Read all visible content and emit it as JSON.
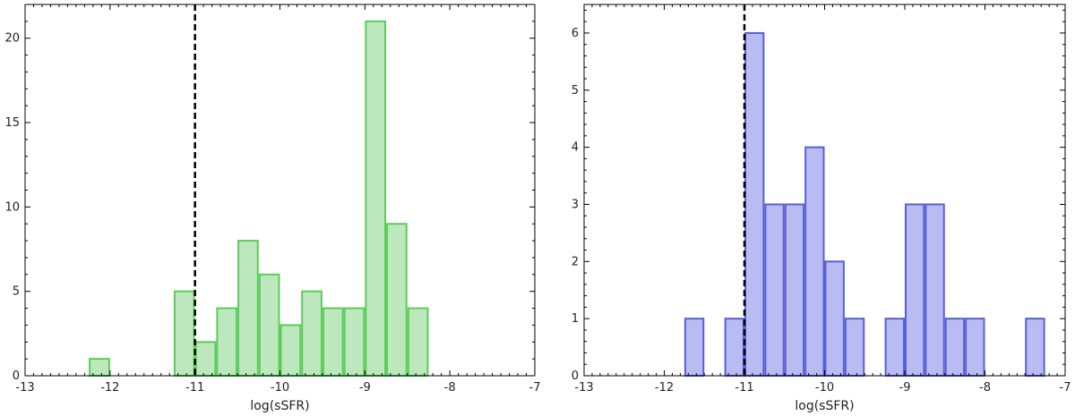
{
  "chart_data": [
    {
      "type": "bar",
      "xlabel": "log(sSFR)",
      "ylabel": "",
      "xlim": [
        -13,
        -7
      ],
      "ylim": [
        0,
        22
      ],
      "xticks": [
        -13,
        -12,
        -11,
        -10,
        -9,
        -8,
        -7
      ],
      "yticks": [
        0,
        5,
        10,
        15,
        20
      ],
      "bin_width": 0.25,
      "bins": [
        {
          "x0": -12.25,
          "x1": -12.0,
          "value": 1
        },
        {
          "x0": -11.25,
          "x1": -11.0,
          "value": 5
        },
        {
          "x0": -11.0,
          "x1": -10.75,
          "value": 2
        },
        {
          "x0": -10.75,
          "x1": -10.5,
          "value": 4
        },
        {
          "x0": -10.5,
          "x1": -10.25,
          "value": 8
        },
        {
          "x0": -10.25,
          "x1": -10.0,
          "value": 6
        },
        {
          "x0": -10.0,
          "x1": -9.75,
          "value": 3
        },
        {
          "x0": -9.75,
          "x1": -9.5,
          "value": 5
        },
        {
          "x0": -9.5,
          "x1": -9.25,
          "value": 4
        },
        {
          "x0": -9.25,
          "x1": -9.0,
          "value": 4
        },
        {
          "x0": -9.0,
          "x1": -8.75,
          "value": 21
        },
        {
          "x0": -8.75,
          "x1": -8.5,
          "value": 9
        },
        {
          "x0": -8.5,
          "x1": -8.25,
          "value": 4
        }
      ],
      "vline": -11,
      "vline_style": "dashed",
      "fill_color": "#bde8bd",
      "edge_color": "#5ccc5c",
      "grid": false
    },
    {
      "type": "bar",
      "xlabel": "log(sSFR)",
      "ylabel": "",
      "xlim": [
        -13,
        -7
      ],
      "ylim": [
        0,
        6.5
      ],
      "xticks": [
        -13,
        -12,
        -11,
        -10,
        -9,
        -8,
        -7
      ],
      "yticks": [
        0,
        1,
        2,
        3,
        4,
        5,
        6
      ],
      "bin_width": 0.25,
      "bins": [
        {
          "x0": -11.75,
          "x1": -11.5,
          "value": 1
        },
        {
          "x0": -11.25,
          "x1": -11.0,
          "value": 1
        },
        {
          "x0": -11.0,
          "x1": -10.75,
          "value": 6
        },
        {
          "x0": -10.75,
          "x1": -10.5,
          "value": 3
        },
        {
          "x0": -10.5,
          "x1": -10.25,
          "value": 3
        },
        {
          "x0": -10.25,
          "x1": -10.0,
          "value": 4
        },
        {
          "x0": -10.0,
          "x1": -9.75,
          "value": 2
        },
        {
          "x0": -9.75,
          "x1": -9.5,
          "value": 1
        },
        {
          "x0": -9.25,
          "x1": -9.0,
          "value": 1
        },
        {
          "x0": -9.0,
          "x1": -8.75,
          "value": 3
        },
        {
          "x0": -8.75,
          "x1": -8.5,
          "value": 3
        },
        {
          "x0": -8.5,
          "x1": -8.25,
          "value": 1
        },
        {
          "x0": -8.25,
          "x1": -8.0,
          "value": 1
        },
        {
          "x0": -7.5,
          "x1": -7.25,
          "value": 1
        }
      ],
      "vline": -11,
      "vline_style": "dashed",
      "fill_color": "#b8bcf2",
      "edge_color": "#5a5fd8",
      "grid": false
    }
  ]
}
